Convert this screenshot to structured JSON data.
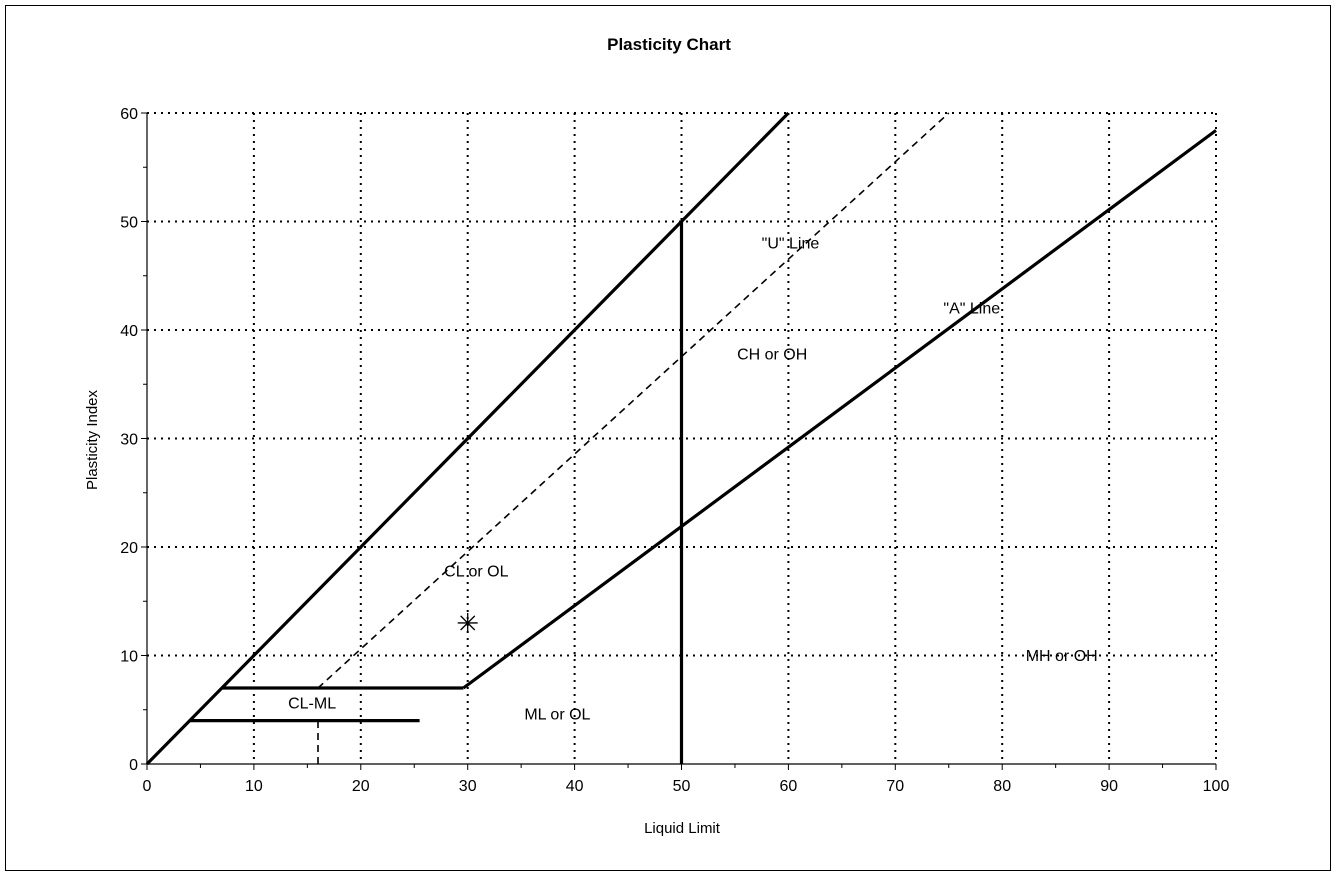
{
  "chart_data": {
    "type": "line",
    "title": "Plasticity Chart",
    "xlabel": "Liquid Limit",
    "ylabel": "Plasticity Index",
    "xlim": [
      0,
      100
    ],
    "ylim": [
      0,
      60
    ],
    "x_ticks": [
      0,
      10,
      20,
      30,
      40,
      50,
      60,
      70,
      80,
      90,
      100
    ],
    "y_ticks": [
      0,
      10,
      20,
      30,
      40,
      50,
      60
    ],
    "grid": true,
    "grid_style": "dotted",
    "series": [
      {
        "role": "boundary",
        "style": "solid",
        "points": [
          [
            0,
            0
          ],
          [
            60,
            60
          ]
        ]
      },
      {
        "role": "u-line",
        "style": "dashed",
        "points": [
          [
            16,
            7
          ],
          [
            75,
            60
          ]
        ]
      },
      {
        "role": "a-line",
        "style": "solid",
        "points": [
          [
            29.6,
            7
          ],
          [
            100,
            58.4
          ]
        ]
      },
      {
        "role": "ll50",
        "style": "solid",
        "points": [
          [
            50,
            0
          ],
          [
            50,
            50
          ]
        ]
      },
      {
        "role": "cl-ml-top",
        "style": "solid",
        "points": [
          [
            7,
            7
          ],
          [
            29.6,
            7
          ]
        ]
      },
      {
        "role": "cl-ml-bottom",
        "style": "solid",
        "points": [
          [
            4,
            4
          ],
          [
            25.5,
            4
          ]
        ]
      },
      {
        "role": "cl-ml-drop",
        "style": "dashed",
        "points": [
          [
            16,
            0
          ],
          [
            16,
            4
          ]
        ]
      }
    ],
    "data_points": [
      {
        "x": 30,
        "y": 13,
        "marker": "asterisk"
      }
    ],
    "annotations": [
      {
        "text": "\"U\" Line",
        "x": 57.5,
        "y": 47.5
      },
      {
        "text": "\"A\" Line",
        "x": 74.5,
        "y": 41.5
      },
      {
        "text": "CH or OH",
        "x": 55.2,
        "y": 37.3
      },
      {
        "text": "CL or OL",
        "x": 27.8,
        "y": 17.3
      },
      {
        "text": "CL-ML",
        "x": 13.2,
        "y": 5.1
      },
      {
        "text": "ML or OL",
        "x": 35.3,
        "y": 4.1
      },
      {
        "text": "MH or OH",
        "x": 82.2,
        "y": 9.5
      }
    ]
  }
}
